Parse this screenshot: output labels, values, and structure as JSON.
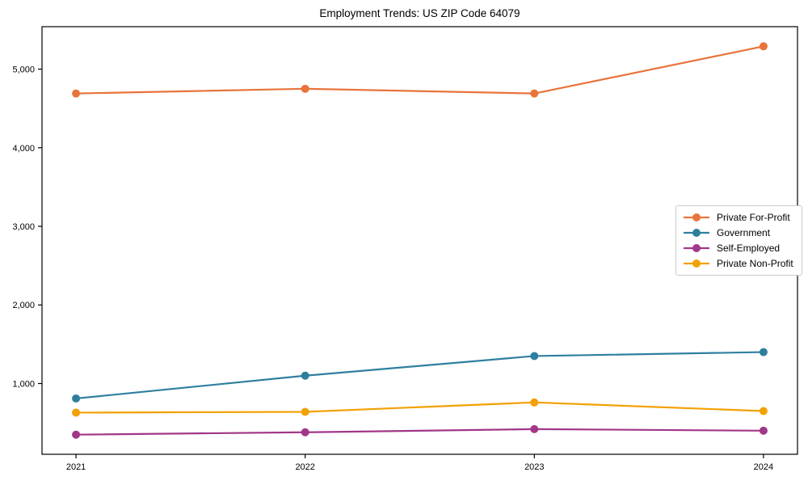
{
  "chart_data": {
    "type": "line",
    "title": "Employment Trends: US ZIP Code 64079",
    "xlabel": "",
    "ylabel": "",
    "categories": [
      "2021",
      "2022",
      "2023",
      "2024"
    ],
    "series": [
      {
        "name": "Private For-Profit",
        "color": "#E8743B",
        "values": [
          4690,
          4750,
          4690,
          5290
        ]
      },
      {
        "name": "Government",
        "color": "#2E7F9E",
        "values": [
          810,
          1100,
          1350,
          1400
        ]
      },
      {
        "name": "Self-Employed",
        "color": "#A13788",
        "values": [
          350,
          380,
          420,
          400
        ]
      },
      {
        "name": "Private Non-Profit",
        "color": "#F2A104",
        "values": [
          630,
          640,
          760,
          650
        ]
      }
    ],
    "ylim": [
      100,
      5540
    ],
    "yticks": [
      {
        "value": 1000,
        "label": "1,000"
      },
      {
        "value": 2000,
        "label": "2,000"
      },
      {
        "value": 3000,
        "label": "3,000"
      },
      {
        "value": 4000,
        "label": "4,000"
      },
      {
        "value": 5000,
        "label": "5,000"
      }
    ],
    "grid": false,
    "legend_position": "center right",
    "axis_color": "#000000",
    "tick_label_color": "#000000",
    "background_color": "#ffffff"
  }
}
